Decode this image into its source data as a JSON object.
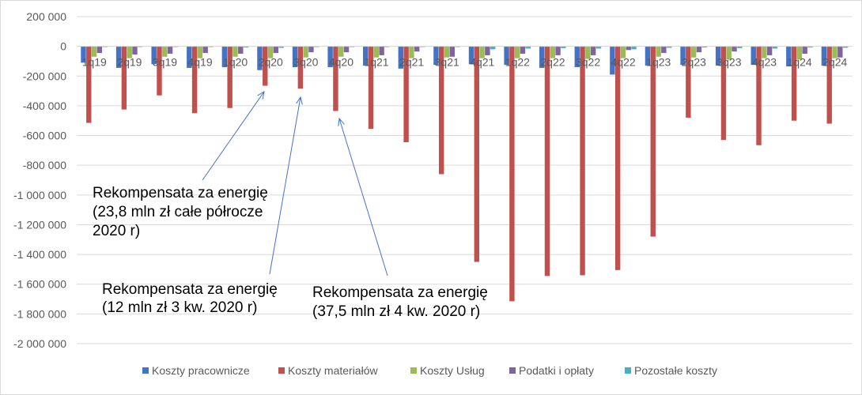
{
  "chart_data": {
    "type": "bar",
    "categories": [
      "1q19",
      "2q19",
      "3q19",
      "4q19",
      "1q20",
      "2q20",
      "3q20",
      "4q20",
      "1q21",
      "2q21",
      "3q21",
      "4q21",
      "1q22",
      "2q22",
      "3q22",
      "4q22",
      "1q23",
      "2q23",
      "3q23",
      "4q23",
      "1q24",
      "2q24"
    ],
    "series": [
      {
        "name": "Koszty pracownicze",
        "color": "#4472C4",
        "values": [
          -110000,
          -145000,
          -120000,
          -145000,
          -140000,
          -160000,
          -140000,
          -140000,
          -130000,
          -150000,
          -125000,
          -120000,
          -125000,
          -145000,
          -140000,
          -190000,
          -130000,
          -125000,
          -130000,
          -125000,
          -135000,
          -130000
        ]
      },
      {
        "name": "Koszty materiałów",
        "color": "#C0504D",
        "values": [
          -515000,
          -425000,
          -330000,
          -450000,
          -415000,
          -265000,
          -285000,
          -435000,
          -555000,
          -645000,
          -860000,
          -1450000,
          -1715000,
          -1545000,
          -1540000,
          -1505000,
          -1280000,
          -480000,
          -630000,
          -665000,
          -500000,
          -520000
        ]
      },
      {
        "name": "Koszty Usług",
        "color": "#9BBB59",
        "values": [
          -70000,
          -80000,
          -70000,
          -80000,
          -70000,
          -80000,
          -75000,
          -70000,
          -75000,
          -80000,
          -75000,
          -80000,
          -80000,
          -80000,
          -85000,
          -80000,
          -70000,
          -75000,
          -90000,
          -80000,
          -90000,
          -80000
        ]
      },
      {
        "name": "Podatki i opłaty",
        "color": "#8064A2",
        "values": [
          -45000,
          -55000,
          -50000,
          -45000,
          -50000,
          -45000,
          -40000,
          -40000,
          -60000,
          -35000,
          -70000,
          -60000,
          -50000,
          -60000,
          -60000,
          -25000,
          -45000,
          -40000,
          -35000,
          -60000,
          -50000,
          -75000
        ]
      },
      {
        "name": "Pozostałe koszty",
        "color": "#4BACC6",
        "values": [
          -5000,
          -5000,
          -5000,
          -5000,
          -8000,
          -10000,
          -5000,
          -5000,
          -5000,
          -5000,
          -5000,
          -20000,
          -15000,
          -12000,
          -15000,
          -20000,
          -10000,
          -8000,
          -12000,
          -15000,
          -8000,
          -10000
        ]
      }
    ],
    "ylim": [
      -2000000,
      200000
    ],
    "y_ticks": [
      200000,
      0,
      -200000,
      -400000,
      -600000,
      -800000,
      -1000000,
      -1200000,
      -1400000,
      -1600000,
      -1800000,
      -2000000
    ],
    "y_tick_labels": [
      "200 000",
      "0",
      "-200 000",
      "-400 000",
      "-600 000",
      "-800 000",
      "-1 000 000",
      "-1 200 000",
      "-1 400 000",
      "-1 600 000",
      "-1 800 000",
      "-2 000 000"
    ],
    "grid": true,
    "legend_position": "bottom",
    "annotations": [
      {
        "lines": [
          "Rekompensata za energię",
          "(23,8 mln zł całe półrocze",
          "2020 r)"
        ],
        "target_category": "2q20"
      },
      {
        "lines": [
          "Rekompensata za energię",
          "(12 mln zł 3 kw. 2020 r)"
        ],
        "target_category": "3q20"
      },
      {
        "lines": [
          "Rekompensata za energię",
          "(37,5 mln zł 4 kw. 2020 r)"
        ],
        "target_category": "4q20"
      }
    ]
  }
}
